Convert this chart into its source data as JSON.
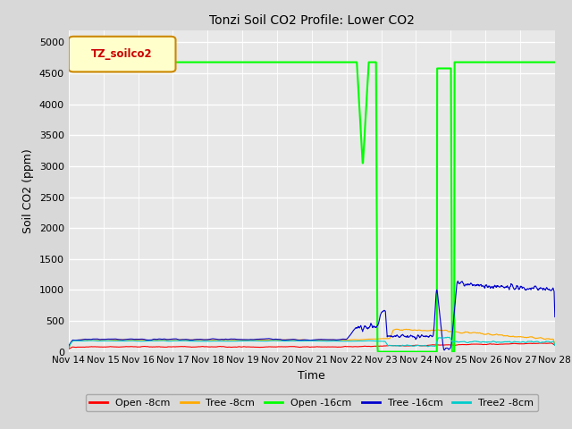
{
  "title": "Tonzi Soil CO2 Profile: Lower CO2",
  "ylabel": "Soil CO2 (ppm)",
  "xlabel": "Time",
  "legend_label": "TZ_soilco2",
  "ylim": [
    0,
    5200
  ],
  "yticks": [
    0,
    500,
    1000,
    1500,
    2000,
    2500,
    3000,
    3500,
    4000,
    4500,
    5000
  ],
  "background_color": "#d8d8d8",
  "plot_bg_color": "#e8e8e8",
  "series": {
    "open_8cm": {
      "color": "#ff0000",
      "label": "Open -8cm",
      "lw": 0.8
    },
    "tree_8cm": {
      "color": "#ffaa00",
      "label": "Tree -8cm",
      "lw": 0.8
    },
    "open_16cm": {
      "color": "#00ff00",
      "label": "Open -16cm",
      "lw": 1.5
    },
    "tree_16cm": {
      "color": "#0000cc",
      "label": "Tree -16cm",
      "lw": 0.8
    },
    "tree2_8cm": {
      "color": "#00cccc",
      "label": "Tree2 -8cm",
      "lw": 0.8
    }
  },
  "x_start": 0,
  "x_end": 14,
  "xtick_labels": [
    "Nov 14",
    "Nov 15",
    "Nov 16",
    "Nov 17",
    "Nov 18",
    "Nov 19",
    "Nov 20",
    "Nov 21",
    "Nov 22",
    "Nov 23",
    "Nov 24",
    "Nov 25",
    "Nov 26",
    "Nov 27",
    "Nov 28"
  ],
  "xtick_positions": [
    0,
    1,
    2,
    3,
    4,
    5,
    6,
    7,
    8,
    9,
    10,
    11,
    12,
    13,
    14
  ]
}
